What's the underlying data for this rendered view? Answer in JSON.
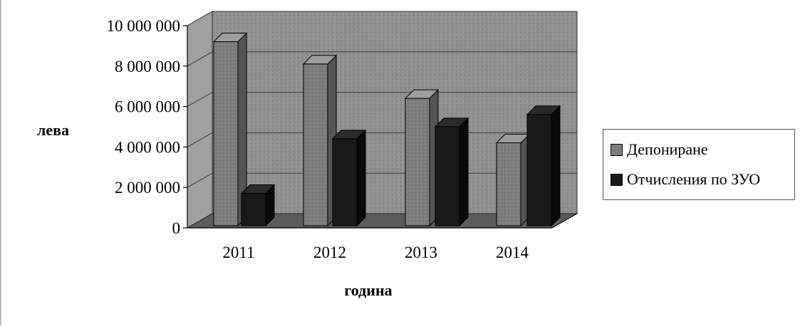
{
  "chart_data": {
    "type": "bar",
    "title": "",
    "xlabel": "година",
    "ylabel": "лева",
    "categories": [
      "2011",
      "2012",
      "2013",
      "2014"
    ],
    "series": [
      {
        "name": "Депониране",
        "values": [
          9100000,
          8000000,
          6300000,
          4100000
        ]
      },
      {
        "name": "Отчисления по ЗУО",
        "values": [
          1600000,
          4300000,
          4900000,
          5500000
        ]
      }
    ],
    "ylim": [
      0,
      10000000
    ],
    "yticks": [
      "0",
      "2 000 000",
      "4 000 000",
      "6 000 000",
      "8 000 000",
      "10 000 000"
    ],
    "grid": true,
    "legend_position": "right",
    "colors": {
      "series1": "#7d7d7d",
      "series2": "#1a1a1a",
      "wall": "#8f8f8f",
      "floor": "#5c5c5c"
    }
  }
}
